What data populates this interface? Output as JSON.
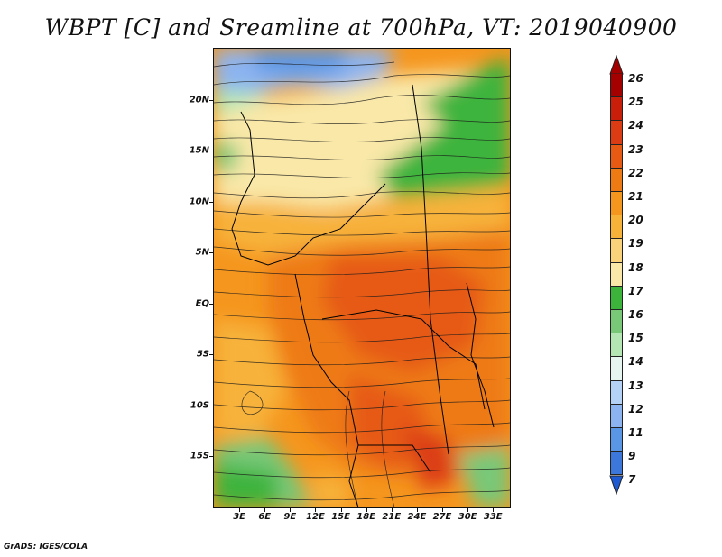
{
  "title": "WBPT [C] and Sreamline at 700hPa, VT: 2019040900",
  "credit": "GrADS: IGES/COLA",
  "map": {
    "lat_labels": [
      "20N",
      "15N",
      "10N",
      "5N",
      "EQ",
      "5S",
      "10S",
      "15S"
    ],
    "lat_values": [
      20,
      15,
      10,
      5,
      0,
      -5,
      -10,
      -15
    ],
    "lon_labels": [
      "3E",
      "6E",
      "9E",
      "12E",
      "15E",
      "18E",
      "21E",
      "24E",
      "27E",
      "30E",
      "33E"
    ],
    "lon_values": [
      3,
      6,
      9,
      12,
      15,
      18,
      21,
      24,
      27,
      30,
      33
    ],
    "lon_range": [
      0,
      35
    ],
    "lat_range": [
      -20,
      25
    ]
  },
  "colorbar": {
    "levels": [
      "26",
      "25",
      "24",
      "23",
      "22",
      "21",
      "20",
      "19",
      "18",
      "17",
      "16",
      "15",
      "14",
      "13",
      "12",
      "11",
      "9",
      "7"
    ],
    "colors": [
      "#a50000",
      "#c81e0a",
      "#dc3c14",
      "#e65a14",
      "#ee7a14",
      "#f5961e",
      "#f7b23a",
      "#f9d27a",
      "#f9e8a8",
      "#3cb43c",
      "#78c878",
      "#b4e6b4",
      "#e6f5f0",
      "#b4d2f5",
      "#8cb4f0",
      "#5a96e6",
      "#3c78dc",
      "#1e5ad2"
    ]
  }
}
